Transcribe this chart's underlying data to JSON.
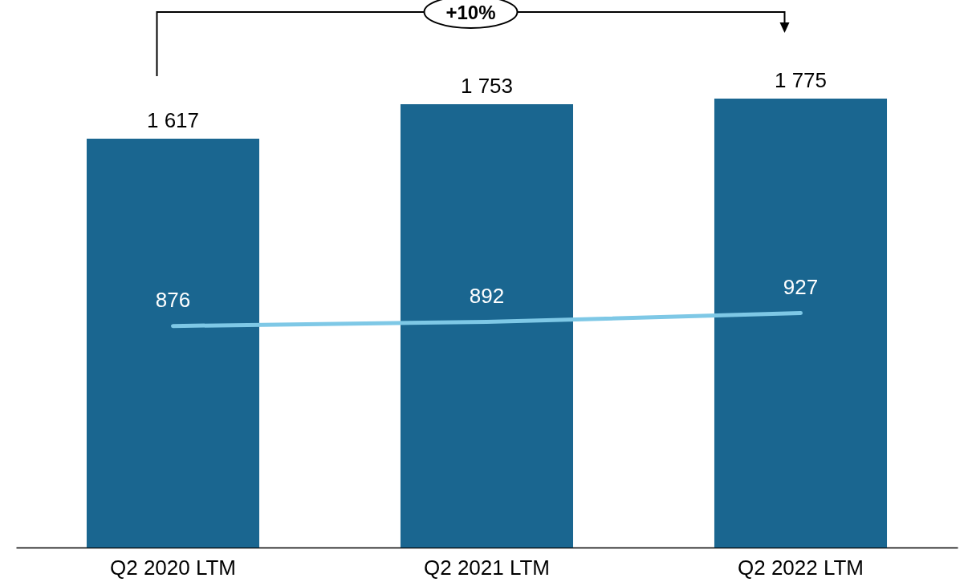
{
  "chart_data": {
    "type": "bar",
    "categories": [
      "Q2 2020 LTM",
      "Q2 2021 LTM",
      "Q2 2022 LTM"
    ],
    "series": [
      {
        "color": "#1a6690",
        "values": [
          1617,
          1753,
          1775
        ],
        "value_labels": [
          "1 617",
          "1 753",
          "1 775"
        ]
      },
      {
        "type": "line",
        "color": "#7ec8e6",
        "values": [
          876,
          892,
          927
        ],
        "value_labels": [
          "876",
          "892",
          "927"
        ]
      }
    ],
    "tick_labels": "x",
    "grid": false,
    "marker": "none",
    "annotations": [
      "+10%"
    ]
  }
}
